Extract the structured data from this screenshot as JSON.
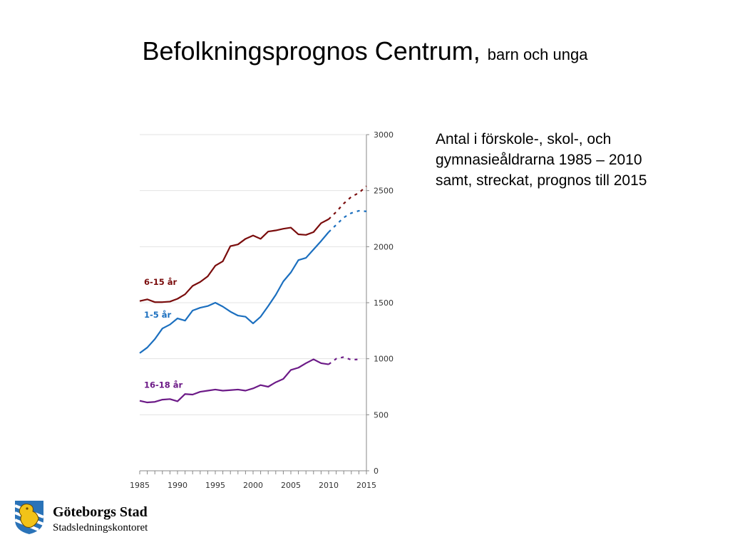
{
  "slide": {
    "title_main": "Befolkningsprognos Centrum,",
    "title_sub": "barn och unga",
    "description_lines": [
      "Antal i förskole-, skol-, och",
      "gymnasieåldrarna 1985 – 2010",
      "samt, streckat, prognos till 2015"
    ]
  },
  "logo": {
    "name": "Göteborgs Stad",
    "department": "Stadsledningskontoret",
    "emblem_icon": "goteborg-lion-coat-of-arms-icon",
    "emblem_colors": {
      "blue": "#2a73b8",
      "gold": "#f2c318"
    }
  },
  "chart_data": {
    "type": "line",
    "title": "",
    "xlabel": "",
    "ylabel": "",
    "xlim": [
      1985,
      2015
    ],
    "ylim": [
      0,
      3000
    ],
    "x_ticks": [
      1985,
      1990,
      1995,
      2000,
      2005,
      2010,
      2015
    ],
    "y_ticks": [
      0,
      500,
      1000,
      1500,
      2000,
      2500,
      3000
    ],
    "y_axis_position": "right",
    "grid": "horizontal",
    "legend": "inline labels at left",
    "series": [
      {
        "name": "6-15 år",
        "color": "#7a0c0c",
        "x": [
          1985,
          1986,
          1987,
          1988,
          1989,
          1990,
          1991,
          1992,
          1993,
          1994,
          1995,
          1996,
          1997,
          1998,
          1999,
          2000,
          2001,
          2002,
          2003,
          2004,
          2005,
          2006,
          2007,
          2008,
          2009,
          2010
        ],
        "values": [
          1515,
          1530,
          1505,
          1505,
          1510,
          1535,
          1575,
          1650,
          1685,
          1735,
          1830,
          1870,
          2005,
          2020,
          2070,
          2100,
          2070,
          2135,
          2145,
          2160,
          2170,
          2110,
          2105,
          2130,
          2210,
          2245
        ],
        "forecast_x": [
          2010,
          2011,
          2012,
          2013,
          2014,
          2015
        ],
        "forecast_values": [
          2245,
          2310,
          2385,
          2445,
          2480,
          2540
        ]
      },
      {
        "name": "1-5 år",
        "color": "#1b6fbf",
        "x": [
          1985,
          1986,
          1987,
          1988,
          1989,
          1990,
          1991,
          1992,
          1993,
          1994,
          1995,
          1996,
          1997,
          1998,
          1999,
          2000,
          2001,
          2002,
          2003,
          2004,
          2005,
          2006,
          2007,
          2008,
          2009,
          2010
        ],
        "values": [
          1050,
          1100,
          1175,
          1270,
          1305,
          1360,
          1340,
          1430,
          1455,
          1470,
          1500,
          1465,
          1420,
          1385,
          1375,
          1315,
          1375,
          1470,
          1570,
          1690,
          1770,
          1880,
          1900,
          1975,
          2050,
          2130
        ],
        "forecast_x": [
          2010,
          2011,
          2012,
          2013,
          2014,
          2015
        ],
        "forecast_values": [
          2130,
          2195,
          2260,
          2300,
          2320,
          2315
        ]
      },
      {
        "name": "16-18 år",
        "color": "#6c1a87",
        "x": [
          1985,
          1986,
          1987,
          1988,
          1989,
          1990,
          1991,
          1992,
          1993,
          1994,
          1995,
          1996,
          1997,
          1998,
          1999,
          2000,
          2001,
          2002,
          2003,
          2004,
          2005,
          2006,
          2007,
          2008,
          2009,
          2010
        ],
        "values": [
          625,
          610,
          615,
          635,
          640,
          620,
          685,
          680,
          705,
          715,
          725,
          715,
          720,
          725,
          715,
          735,
          765,
          750,
          790,
          820,
          900,
          920,
          960,
          995,
          960,
          950
        ],
        "forecast_x": [
          2010,
          2011,
          2012,
          2013,
          2014
        ],
        "forecast_values": [
          950,
          1000,
          1015,
          990,
          995
        ]
      }
    ]
  }
}
